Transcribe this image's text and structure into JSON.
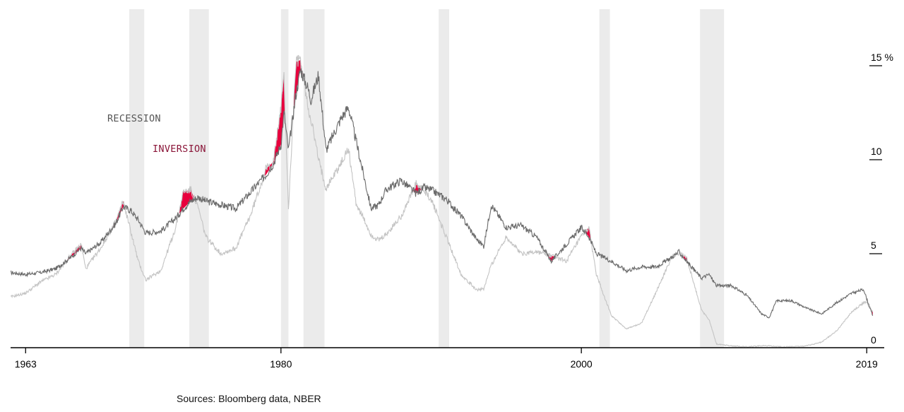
{
  "chart_data": {
    "type": "line",
    "xlim": [
      1962,
      2019.6
    ],
    "ylim": [
      0,
      16
    ],
    "y_unit": "%",
    "x_ticks": [
      {
        "value": 1963,
        "label": "1963"
      },
      {
        "value": 1980,
        "label": "1980"
      },
      {
        "value": 2000,
        "label": "2000"
      },
      {
        "value": 2019,
        "label": "2019"
      }
    ],
    "y_ticks": [
      {
        "value": 0,
        "label": "0"
      },
      {
        "value": 5,
        "label": "5"
      },
      {
        "value": 10,
        "label": "10"
      },
      {
        "value": 15,
        "label": "15 %"
      }
    ],
    "legend": {
      "recession_label": "RECESSION",
      "inversion_label": "INVERSION"
    },
    "colors": {
      "long_rate": "#6b6b6b",
      "short_rate": "#c4c4c4",
      "inversion": "#e8003d",
      "recession_band": "#ebebeb",
      "recession_text": "#555555",
      "inversion_text": "#8a1538"
    },
    "recessions": [
      [
        1969.9,
        1970.9
      ],
      [
        1973.9,
        1975.2
      ],
      [
        1980.0,
        1980.5
      ],
      [
        1981.5,
        1982.9
      ],
      [
        1990.5,
        1991.2
      ],
      [
        2001.2,
        2001.9
      ],
      [
        2007.9,
        2009.5
      ]
    ],
    "series": [
      {
        "key": "long",
        "x": [
          1962.0,
          1963.0,
          1964.0,
          1965.0,
          1966.0,
          1966.7,
          1967.0,
          1968.0,
          1969.0,
          1969.5,
          1970.0,
          1970.5,
          1971.0,
          1972.0,
          1973.0,
          1973.5,
          1974.0,
          1974.5,
          1975.0,
          1976.0,
          1977.0,
          1978.0,
          1979.0,
          1979.5,
          1980.0,
          1980.2,
          1980.5,
          1981.0,
          1981.3,
          1981.8,
          1982.0,
          1982.5,
          1983.0,
          1984.0,
          1984.5,
          1985.0,
          1986.0,
          1986.5,
          1987.0,
          1988.0,
          1989.0,
          1989.5,
          1990.0,
          1991.0,
          1992.0,
          1993.0,
          1993.5,
          1994.0,
          1995.0,
          1996.0,
          1997.0,
          1998.0,
          1999.0,
          2000.0,
          2000.5,
          2001.0,
          2002.0,
          2003.0,
          2004.0,
          2005.0,
          2006.0,
          2006.5,
          2007.0,
          2008.0,
          2008.5,
          2009.0,
          2010.0,
          2011.0,
          2012.0,
          2012.5,
          2013.0,
          2014.0,
          2015.0,
          2016.0,
          2017.0,
          2018.0,
          2018.8,
          2019.0,
          2019.4
        ],
        "y": [
          4.0,
          3.9,
          4.0,
          4.2,
          4.8,
          5.3,
          5.0,
          5.6,
          6.6,
          7.5,
          7.3,
          6.8,
          6.1,
          6.2,
          6.9,
          7.4,
          7.8,
          8.0,
          7.8,
          7.6,
          7.4,
          8.3,
          9.2,
          9.8,
          10.8,
          12.5,
          10.5,
          13.5,
          14.8,
          13.8,
          13.2,
          14.5,
          10.5,
          12.2,
          12.8,
          11.0,
          7.4,
          7.6,
          8.4,
          8.9,
          8.2,
          8.5,
          8.4,
          7.9,
          7.0,
          5.8,
          5.4,
          7.6,
          6.4,
          6.5,
          5.9,
          4.6,
          5.5,
          6.4,
          5.9,
          5.0,
          4.6,
          4.1,
          4.3,
          4.3,
          4.8,
          5.1,
          4.6,
          3.7,
          3.9,
          3.3,
          3.3,
          2.8,
          1.8,
          1.6,
          2.5,
          2.5,
          2.1,
          1.8,
          2.4,
          2.9,
          3.1,
          2.6,
          1.7
        ]
      },
      {
        "key": "short",
        "x": [
          1962.0,
          1963.0,
          1964.0,
          1965.0,
          1966.0,
          1966.7,
          1967.0,
          1968.0,
          1969.0,
          1969.5,
          1970.0,
          1970.5,
          1971.0,
          1972.0,
          1973.0,
          1973.5,
          1974.0,
          1974.5,
          1975.0,
          1976.0,
          1977.0,
          1978.0,
          1979.0,
          1979.5,
          1980.0,
          1980.2,
          1980.5,
          1981.0,
          1981.3,
          1981.8,
          1982.0,
          1982.5,
          1983.0,
          1984.0,
          1984.5,
          1985.0,
          1986.0,
          1986.5,
          1987.0,
          1988.0,
          1989.0,
          1989.5,
          1990.0,
          1991.0,
          1992.0,
          1993.0,
          1993.5,
          1994.0,
          1995.0,
          1996.0,
          1997.0,
          1998.0,
          1999.0,
          2000.0,
          2000.5,
          2001.0,
          2002.0,
          2003.0,
          2004.0,
          2005.0,
          2006.0,
          2006.5,
          2007.0,
          2008.0,
          2008.5,
          2009.0,
          2010.0,
          2011.0,
          2012.0,
          2012.5,
          2013.0,
          2014.0,
          2015.0,
          2016.0,
          2017.0,
          2018.0,
          2018.8,
          2019.0,
          2019.4
        ],
        "y": [
          2.7,
          2.9,
          3.5,
          3.9,
          4.9,
          5.5,
          4.2,
          5.3,
          6.7,
          7.8,
          6.2,
          4.6,
          3.6,
          4.1,
          6.4,
          8.3,
          8.4,
          7.4,
          5.9,
          5.0,
          5.3,
          7.1,
          9.5,
          9.9,
          12.8,
          14.4,
          7.4,
          15.2,
          15.3,
          12.8,
          12.2,
          10.0,
          8.5,
          9.8,
          10.6,
          7.7,
          6.0,
          5.7,
          6.0,
          7.0,
          8.7,
          8.3,
          7.9,
          5.9,
          3.9,
          3.1,
          3.1,
          4.4,
          5.9,
          5.0,
          5.1,
          4.9,
          4.6,
          5.9,
          6.4,
          3.9,
          1.7,
          1.0,
          1.3,
          3.0,
          4.8,
          5.0,
          4.8,
          2.0,
          1.5,
          0.2,
          0.1,
          0.05,
          0.1,
          0.1,
          0.05,
          0.05,
          0.1,
          0.3,
          0.9,
          1.9,
          2.4,
          2.4,
          1.9
        ]
      }
    ]
  },
  "source": "Sources: Bloomberg data, NBER"
}
